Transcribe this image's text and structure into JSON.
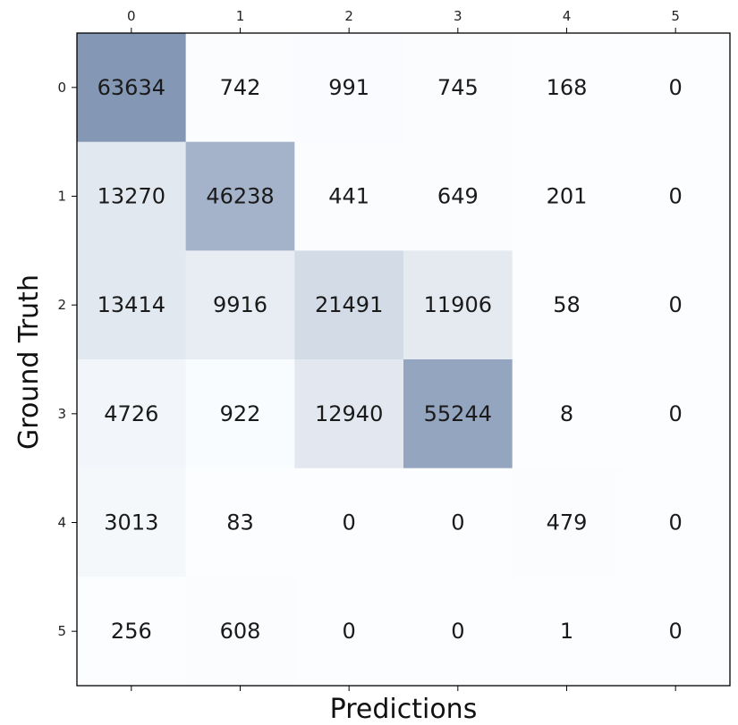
{
  "chart_data": {
    "type": "heatmap",
    "title": "",
    "xlabel": "Predictions",
    "ylabel": "Ground Truth",
    "x_ticks": [
      "0",
      "1",
      "2",
      "3",
      "4",
      "5"
    ],
    "y_ticks": [
      "0",
      "1",
      "2",
      "3",
      "4",
      "5"
    ],
    "rows": [
      "0",
      "1",
      "2",
      "3",
      "4",
      "5"
    ],
    "columns": [
      "0",
      "1",
      "2",
      "3",
      "4",
      "5"
    ],
    "values": [
      [
        63634,
        742,
        991,
        745,
        168,
        0
      ],
      [
        13270,
        46238,
        441,
        649,
        201,
        0
      ],
      [
        13414,
        9916,
        21491,
        11906,
        58,
        0
      ],
      [
        4726,
        922,
        12940,
        55244,
        8,
        0
      ],
      [
        3013,
        83,
        0,
        0,
        479,
        0
      ],
      [
        256,
        608,
        0,
        0,
        1,
        0
      ]
    ],
    "colormap": "Blues",
    "grid": false,
    "colors": {
      "low": "#f7fbff",
      "high": "#08306b",
      "cell_alpha": 0.5,
      "frame": "#000000",
      "text": "#1a1a1a"
    }
  }
}
